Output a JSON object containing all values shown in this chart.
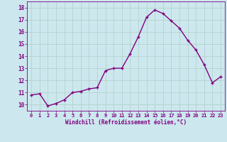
{
  "x": [
    0,
    1,
    2,
    3,
    4,
    5,
    6,
    7,
    8,
    9,
    10,
    11,
    12,
    13,
    14,
    15,
    16,
    17,
    18,
    19,
    20,
    21,
    22,
    23
  ],
  "y": [
    10.8,
    10.9,
    9.9,
    10.1,
    10.4,
    11.0,
    11.1,
    11.3,
    11.4,
    12.8,
    13.0,
    13.0,
    14.2,
    15.6,
    17.2,
    17.8,
    17.5,
    16.9,
    16.3,
    15.3,
    14.5,
    13.3,
    11.8,
    12.3
  ],
  "line_color": "#800080",
  "marker": "+",
  "marker_size": 3,
  "xlabel": "Windchill (Refroidissement éolien,°C)",
  "xlim": [
    -0.5,
    23.5
  ],
  "ylim": [
    9.5,
    18.5
  ],
  "yticks": [
    10,
    11,
    12,
    13,
    14,
    15,
    16,
    17,
    18
  ],
  "xticks": [
    0,
    1,
    2,
    3,
    4,
    5,
    6,
    7,
    8,
    9,
    10,
    11,
    12,
    13,
    14,
    15,
    16,
    17,
    18,
    19,
    20,
    21,
    22,
    23
  ],
  "bg_color": "#cce8ee",
  "grid_color": "#b0cec8",
  "xlabel_color": "#800080",
  "tick_color": "#800080",
  "line_width": 1.0
}
